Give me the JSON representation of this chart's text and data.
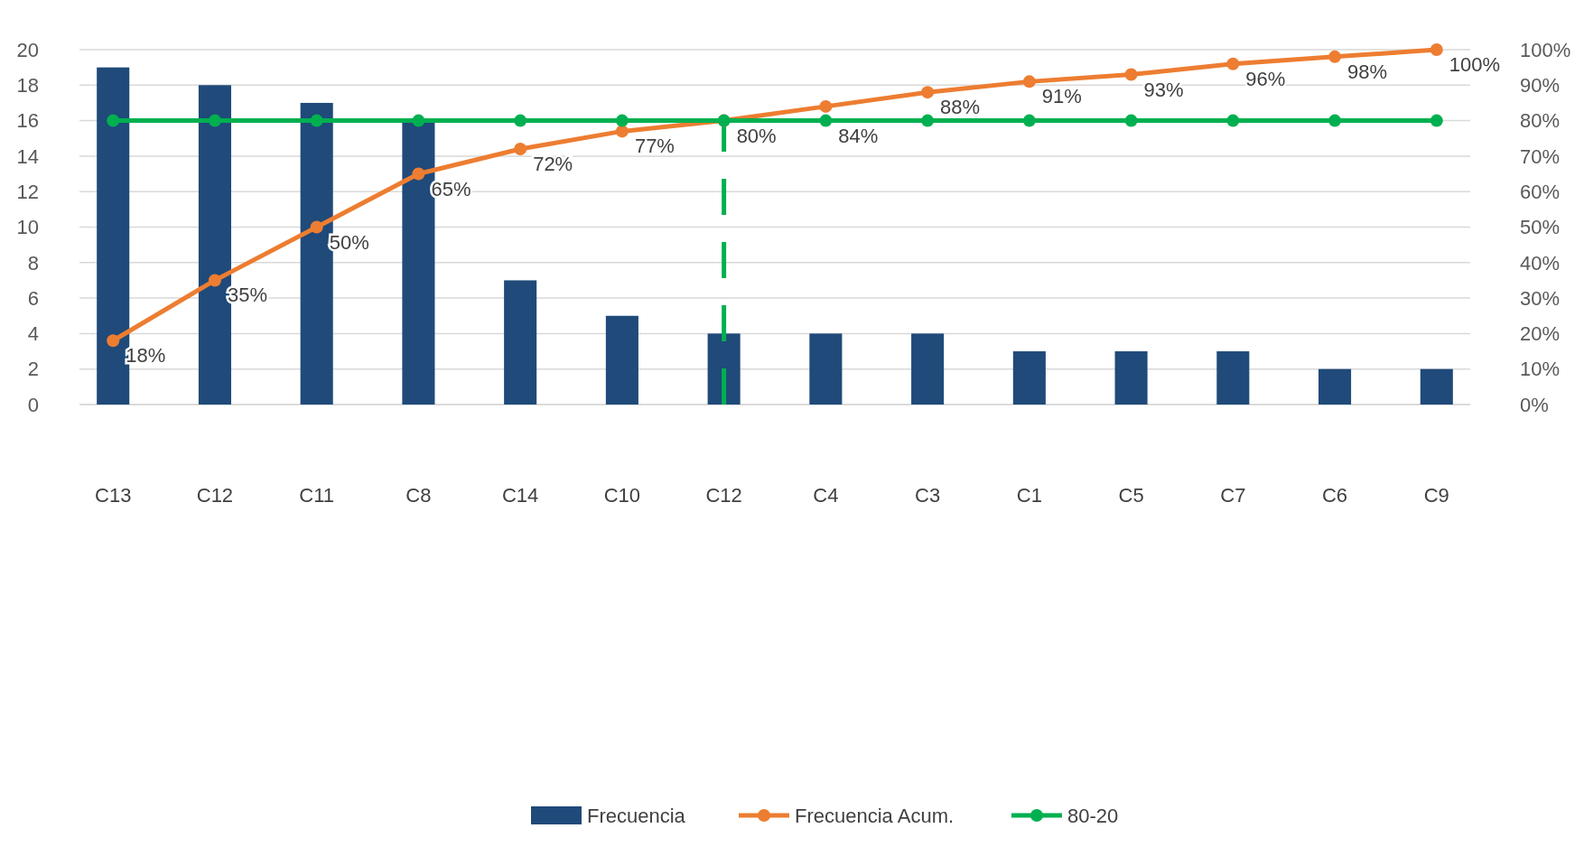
{
  "chart_data": {
    "type": "bar",
    "categories": [
      "C13",
      "C12",
      "C11",
      "C8",
      "C14",
      "C10",
      "C12",
      "C4",
      "C3",
      "C1",
      "C5",
      "C7",
      "C6",
      "C9"
    ],
    "series": [
      {
        "name": "Frecuencia",
        "color": "#1f4a7a",
        "values": [
          19,
          18,
          17,
          16,
          7,
          5,
          4,
          4,
          4,
          3,
          3,
          3,
          2,
          2
        ]
      },
      {
        "name": "Frecuencia Acum.",
        "type": "line",
        "axis": "y2",
        "color": "#ed7d31",
        "marker": "circle",
        "values": [
          18,
          35,
          50,
          65,
          72,
          77,
          80,
          84,
          88,
          91,
          93,
          96,
          98,
          100
        ],
        "value_labels": [
          "18%",
          "35%",
          "50%",
          "65%",
          "72%",
          "77%",
          "80%",
          "84%",
          "88%",
          "91%",
          "93%",
          "96%",
          "98%",
          "100%"
        ]
      },
      {
        "name": "80-20",
        "type": "line",
        "axis": "y2",
        "color": "#00b050",
        "marker": "circle",
        "values": [
          80,
          80,
          80,
          80,
          80,
          80,
          80,
          80,
          80,
          80,
          80,
          80,
          80,
          80
        ]
      }
    ],
    "ylim": [
      0,
      20
    ],
    "yticks": [
      0,
      2,
      4,
      6,
      8,
      10,
      12,
      14,
      16,
      18,
      20
    ],
    "y2lim": [
      0,
      100
    ],
    "y2ticks": [
      {
        "value": 0,
        "label": "0%"
      },
      {
        "value": 10,
        "label": "10%"
      },
      {
        "value": 20,
        "label": "20%"
      },
      {
        "value": 30,
        "label": "30%"
      },
      {
        "value": 40,
        "label": "40%"
      },
      {
        "value": 50,
        "label": "50%"
      },
      {
        "value": 60,
        "label": "60%"
      },
      {
        "value": 70,
        "label": "70%"
      },
      {
        "value": 80,
        "label": "80%"
      },
      {
        "value": 90,
        "label": "90%"
      },
      {
        "value": 100,
        "label": "100%"
      }
    ],
    "grid": "y",
    "legend": "bottom"
  }
}
